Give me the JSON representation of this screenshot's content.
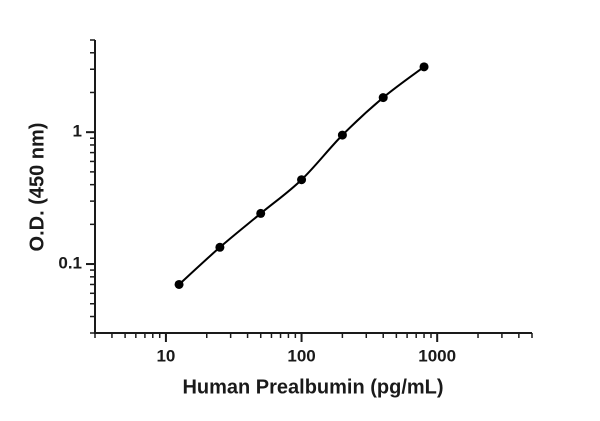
{
  "chart_data": {
    "type": "scatter",
    "x_label": "Human Prealbumin (pg/mL)",
    "y_label": "O.D. (450 nm)",
    "x_log": true,
    "y_log": true,
    "minor_ticks": true,
    "fit_curve": true,
    "xlim": [
      3,
      5000
    ],
    "ylim": [
      0.03,
      5
    ],
    "xticks": [
      10,
      100,
      1000
    ],
    "yticks": [
      0.1,
      1
    ],
    "series": [
      {
        "color": "#000000",
        "x": [
          12.5,
          25,
          50,
          100,
          200,
          400,
          800
        ],
        "values": [
          0.07,
          0.134,
          0.242,
          0.436,
          0.95,
          1.83,
          3.13
        ]
      }
    ]
  }
}
